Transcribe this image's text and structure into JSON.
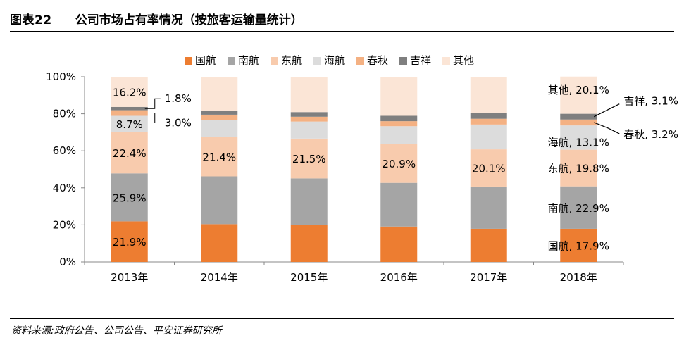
{
  "figure": {
    "number": "图表22",
    "title": "公司市场占有率情况（按旅客运输量统计）",
    "source": "资料来源:政府公告、公司公告、平安证券研究所"
  },
  "chart_data": {
    "type": "bar",
    "stacked": true,
    "categories": [
      "2013年",
      "2014年",
      "2015年",
      "2016年",
      "2017年",
      "2018年"
    ],
    "ylim": [
      0,
      100
    ],
    "yticks": [
      "0%",
      "20%",
      "40%",
      "60%",
      "80%",
      "100%"
    ],
    "legend_position": "top",
    "series": [
      {
        "name": "国航",
        "color": "#ED7D31",
        "values": [
          21.9,
          20.4,
          19.9,
          19.1,
          17.9,
          17.9
        ]
      },
      {
        "name": "南航",
        "color": "#A5A5A5",
        "values": [
          25.9,
          25.8,
          25.2,
          23.6,
          22.8,
          22.9
        ]
      },
      {
        "name": "东航",
        "color": "#F8CBAD",
        "values": [
          22.4,
          21.4,
          21.5,
          20.9,
          20.1,
          19.8
        ]
      },
      {
        "name": "海航",
        "color": "#DCDCDC",
        "values": [
          8.7,
          9.2,
          9.2,
          9.7,
          13.4,
          13.1
        ]
      },
      {
        "name": "春秋",
        "color": "#F4B183",
        "values": [
          3.0,
          2.7,
          2.6,
          2.7,
          3.1,
          3.2
        ]
      },
      {
        "name": "吉祥",
        "color": "#7F7F7F",
        "values": [
          1.8,
          2.1,
          2.5,
          2.9,
          3.0,
          3.1
        ]
      },
      {
        "name": "其他",
        "color": "#FBE5D6",
        "values": [
          16.2,
          18.4,
          19.1,
          21.1,
          19.7,
          20.1
        ]
      }
    ],
    "labels_2013": {
      "other": "16.2%",
      "jixiang": "1.8%",
      "chunqiu": "3.0%",
      "hainan": "8.7%",
      "dongfang": "22.4%",
      "nanfang": "25.9%",
      "guohang": "21.9%"
    },
    "labels_dongfang": [
      "22.4%",
      "21.4%",
      "21.5%",
      "20.9%",
      "20.1%",
      "19.8%"
    ],
    "labels_2018": {
      "other": "其他, 20.1%",
      "jixiang": "吉祥, 3.1%",
      "chunqiu": "春秋, 3.2%",
      "hainan": "海航, 13.1%",
      "dongfang": "东航, 19.8%",
      "nanfang": "南航, 22.9%",
      "guohang": "国航, 17.9%"
    }
  }
}
